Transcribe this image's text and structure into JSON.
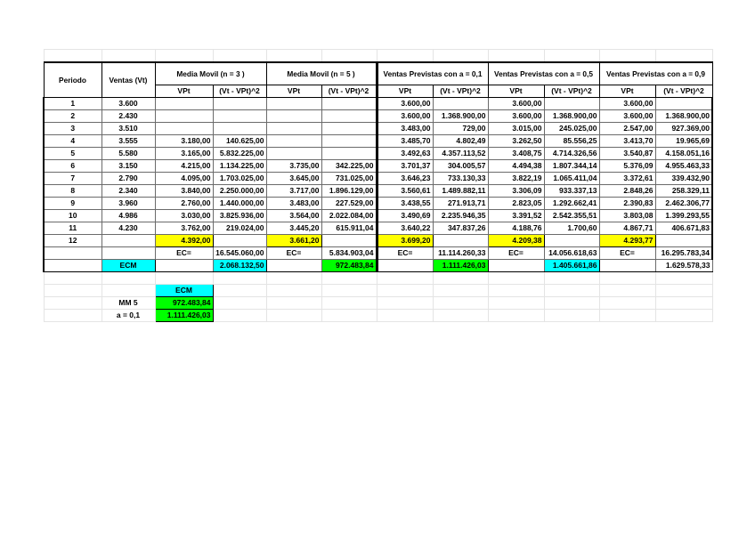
{
  "colors": {
    "highlight_yellow": "#ffff00",
    "highlight_cyan": "#00ffff",
    "highlight_green": "#00ff00",
    "grid_faint": "#e4e4e4",
    "grid_main": "#6b6b6b",
    "border_black": "#000000"
  },
  "table": {
    "headers": {
      "periodo": "Periodo",
      "ventas": "Ventas (Vt)",
      "vpt": "VPt",
      "sq": "(Vt - VPt)^2",
      "groups": [
        "Media Movil (n = 3 )",
        "Media Movil (n = 5 )",
        "Ventas Previstas con a = 0,1",
        "Ventas Previstas con a = 0,5",
        "Ventas Previstas con a = 0,9"
      ]
    },
    "rows": [
      {
        "periodo": "1",
        "ventas": "3.600",
        "cells": [
          "",
          "",
          "",
          "",
          "3.600,00",
          "",
          "3.600,00",
          "",
          "3.600,00",
          ""
        ]
      },
      {
        "periodo": "2",
        "ventas": "2.430",
        "cells": [
          "",
          "",
          "",
          "",
          "3.600,00",
          "1.368.900,00",
          "3.600,00",
          "1.368.900,00",
          "3.600,00",
          "1.368.900,00"
        ]
      },
      {
        "periodo": "3",
        "ventas": "3.510",
        "cells": [
          "",
          "",
          "",
          "",
          "3.483,00",
          "729,00",
          "3.015,00",
          "245.025,00",
          "2.547,00",
          "927.369,00"
        ]
      },
      {
        "periodo": "4",
        "ventas": "3.555",
        "cells": [
          "3.180,00",
          "140.625,00",
          "",
          "",
          "3.485,70",
          "4.802,49",
          "3.262,50",
          "85.556,25",
          "3.413,70",
          "19.965,69"
        ]
      },
      {
        "periodo": "5",
        "ventas": "5.580",
        "cells": [
          "3.165,00",
          "5.832.225,00",
          "",
          "",
          "3.492,63",
          "4.357.113,52",
          "3.408,75",
          "4.714.326,56",
          "3.540,87",
          "4.158.051,16"
        ]
      },
      {
        "periodo": "6",
        "ventas": "3.150",
        "cells": [
          "4.215,00",
          "1.134.225,00",
          "3.735,00",
          "342.225,00",
          "3.701,37",
          "304.005,57",
          "4.494,38",
          "1.807.344,14",
          "5.376,09",
          "4.955.463,33"
        ]
      },
      {
        "periodo": "7",
        "ventas": "2.790",
        "cells": [
          "4.095,00",
          "1.703.025,00",
          "3.645,00",
          "731.025,00",
          "3.646,23",
          "733.130,33",
          "3.822,19",
          "1.065.411,04",
          "3.372,61",
          "339.432,90"
        ]
      },
      {
        "periodo": "8",
        "ventas": "2.340",
        "cells": [
          "3.840,00",
          "2.250.000,00",
          "3.717,00",
          "1.896.129,00",
          "3.560,61",
          "1.489.882,11",
          "3.306,09",
          "933.337,13",
          "2.848,26",
          "258.329,11"
        ]
      },
      {
        "periodo": "9",
        "ventas": "3.960",
        "cells": [
          "2.760,00",
          "1.440.000,00",
          "3.483,00",
          "227.529,00",
          "3.438,55",
          "271.913,71",
          "2.823,05",
          "1.292.662,41",
          "2.390,83",
          "2.462.306,77"
        ]
      },
      {
        "periodo": "10",
        "ventas": "4.986",
        "cells": [
          "3.030,00",
          "3.825.936,00",
          "3.564,00",
          "2.022.084,00",
          "3.490,69",
          "2.235.946,35",
          "3.391,52",
          "2.542.355,51",
          "3.803,08",
          "1.399.293,55"
        ]
      },
      {
        "periodo": "11",
        "ventas": "4.230",
        "cells": [
          "3.762,00",
          "219.024,00",
          "3.445,20",
          "615.911,04",
          "3.640,22",
          "347.837,26",
          "4.188,76",
          "1.700,60",
          "4.867,71",
          "406.671,83"
        ]
      },
      {
        "periodo": "12",
        "ventas": "",
        "highlight": "yellow",
        "cells": [
          "4.392,00",
          "",
          "3.661,20",
          "",
          "3.699,20",
          "",
          "4.209,38",
          "",
          "4.293,77",
          ""
        ]
      }
    ],
    "ec_label": "EC=",
    "ec_values": [
      "16.545.060,00",
      "5.834.903,04",
      "11.114.260,33",
      "14.056.618,63",
      "16.295.783,34"
    ],
    "ecm_label": "ECM",
    "ecm_values": [
      {
        "value": "2.068.132,50",
        "bg": "cyan"
      },
      {
        "value": "972.483,84",
        "bg": "green"
      },
      {
        "value": "1.111.426,03",
        "bg": "green"
      },
      {
        "value": "1.405.661,86",
        "bg": "cyan"
      },
      {
        "value": "1.629.578,33",
        "bg": "cyan"
      }
    ],
    "summary": {
      "header": "ECM",
      "rows": [
        {
          "label": "MM 5",
          "value": "972.483,84"
        },
        {
          "label": "a = 0,1",
          "value": "1.111.426,03"
        }
      ]
    }
  }
}
